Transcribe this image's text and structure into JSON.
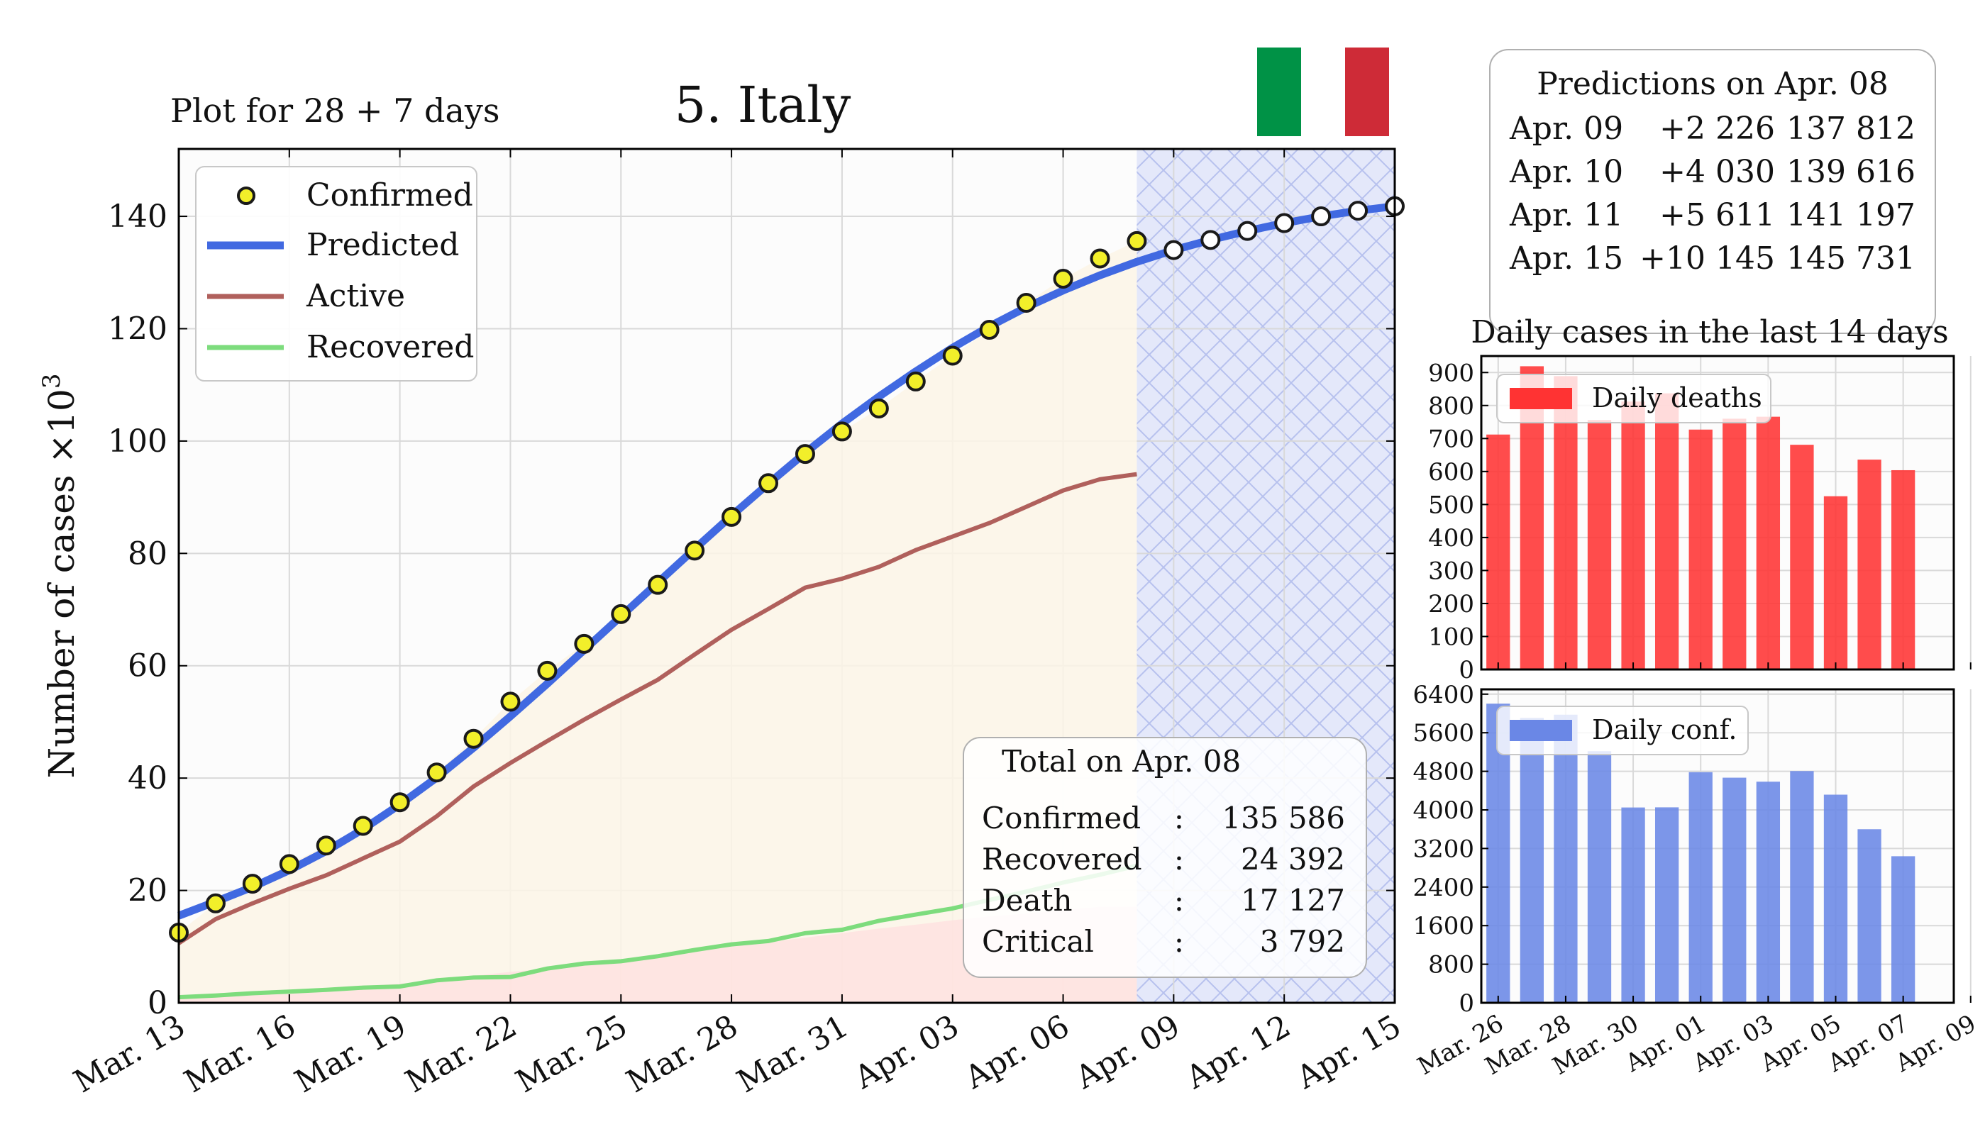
{
  "header": {
    "subtitle": "Plot for 28 + 7 days",
    "title": "5. Italy",
    "flag_colors": [
      "#009246",
      "#ffffff",
      "#ce2b37"
    ]
  },
  "main": {
    "ylabel": "Number of cases ×10",
    "ylabel_sup": "3",
    "x_ticks": [
      "Mar. 13",
      "Mar. 16",
      "Mar. 19",
      "Mar. 22",
      "Mar. 25",
      "Mar. 28",
      "Mar. 31",
      "Apr. 03",
      "Apr. 06",
      "Apr. 09",
      "Apr. 12",
      "Apr. 15"
    ],
    "y_ticks": [
      "0",
      "20",
      "40",
      "60",
      "80",
      "100",
      "120",
      "140"
    ],
    "legend": [
      "Confirmed",
      "Predicted",
      "Active",
      "Recovered"
    ],
    "summary": {
      "title": "Total on Apr. 08",
      "rows": [
        {
          "label": "Confirmed",
          "sep": ":",
          "value": "135 586"
        },
        {
          "label": "Recovered",
          "sep": ":",
          "value": "24 392"
        },
        {
          "label": "Death",
          "sep": ":",
          "value": "17 127"
        },
        {
          "label": "Critical",
          "sep": ":",
          "value": "3 792"
        }
      ]
    }
  },
  "predictions": {
    "title": "Predictions on Apr. 08",
    "rows": [
      {
        "date": "Apr. 09",
        "delta": "+2 226",
        "total": "137 812"
      },
      {
        "date": "Apr. 10",
        "delta": "+4 030",
        "total": "139 616"
      },
      {
        "date": "Apr. 11",
        "delta": "+5 611",
        "total": "141 197"
      },
      {
        "date": "Apr. 15",
        "delta": "+10 145",
        "total": "145 731"
      }
    ]
  },
  "daily": {
    "title": "Daily cases in the last 14 days",
    "x_ticks": [
      "Mar. 26",
      "Mar. 28",
      "Mar. 30",
      "Apr. 01",
      "Apr. 03",
      "Apr. 05",
      "Apr. 07",
      "Apr. 09"
    ],
    "deaths_legend": "Daily deaths",
    "conf_legend": "Daily conf.",
    "deaths_ticks": [
      "0",
      "100",
      "200",
      "300",
      "400",
      "500",
      "600",
      "700",
      "800",
      "900"
    ],
    "conf_ticks": [
      "0",
      "800",
      "1600",
      "2400",
      "3200",
      "4000",
      "4800",
      "5600",
      "6400"
    ]
  },
  "colors": {
    "confirmed": "#f2ef2a",
    "predicted": "#4169e1",
    "active": "#b0605c",
    "recovered": "#7ddc7d",
    "deaths_bar": "#ff3333",
    "conf_bar": "#6a87e6"
  },
  "chart_data": [
    {
      "type": "line",
      "x": [
        "Mar. 13",
        "Mar. 14",
        "Mar. 15",
        "Mar. 16",
        "Mar. 17",
        "Mar. 18",
        "Mar. 19",
        "Mar. 20",
        "Mar. 21",
        "Mar. 22",
        "Mar. 23",
        "Mar. 24",
        "Mar. 25",
        "Mar. 26",
        "Mar. 27",
        "Mar. 28",
        "Mar. 29",
        "Mar. 30",
        "Mar. 31",
        "Apr. 01",
        "Apr. 02",
        "Apr. 03",
        "Apr. 04",
        "Apr. 05",
        "Apr. 06",
        "Apr. 07",
        "Apr. 08",
        "Apr. 09",
        "Apr. 10",
        "Apr. 11",
        "Apr. 12",
        "Apr. 13",
        "Apr. 14",
        "Apr. 15"
      ],
      "series": [
        {
          "name": "Confirmed",
          "values": [
            12.5,
            17.7,
            21.2,
            24.7,
            28.0,
            31.5,
            35.7,
            41.0,
            47.0,
            53.6,
            59.1,
            63.9,
            69.2,
            74.4,
            80.5,
            86.5,
            92.5,
            97.7,
            101.7,
            105.8,
            110.6,
            115.2,
            119.8,
            124.6,
            128.9,
            132.5,
            135.6,
            null,
            null,
            null,
            null,
            null,
            null,
            null
          ]
        },
        {
          "name": "Predicted",
          "values": [
            15.5,
            18.0,
            20.6,
            23.6,
            27.0,
            30.9,
            35.3,
            40.1,
            45.4,
            51.0,
            56.8,
            62.8,
            68.8,
            74.8,
            80.8,
            86.7,
            92.4,
            97.9,
            103.1,
            107.9,
            112.4,
            116.6,
            120.4,
            123.8,
            126.8,
            129.5,
            131.9,
            134.0,
            135.8,
            137.4,
            138.8,
            140.0,
            141.0,
            141.8
          ]
        },
        {
          "name": "Active",
          "values": [
            10.6,
            14.9,
            17.7,
            20.3,
            22.7,
            25.7,
            28.7,
            33.2,
            38.5,
            42.7,
            46.6,
            50.4,
            54.0,
            57.5,
            62.0,
            66.4,
            70.1,
            73.9,
            75.5,
            77.6,
            80.6,
            83.0,
            85.4,
            88.3,
            91.2,
            93.2,
            94.1,
            null,
            null,
            null,
            null,
            null,
            null,
            null
          ]
        },
        {
          "name": "Recovered",
          "values": [
            1.0,
            1.3,
            1.7,
            2.0,
            2.3,
            2.7,
            2.9,
            4.0,
            4.5,
            4.6,
            6.1,
            7.0,
            7.4,
            8.3,
            9.4,
            10.4,
            11.0,
            12.4,
            13.0,
            14.6,
            15.7,
            16.8,
            18.3,
            19.8,
            21.4,
            22.8,
            24.4,
            null,
            null,
            null,
            null,
            null,
            null,
            null
          ]
        },
        {
          "name": "Death",
          "values": [
            1.3,
            1.4,
            1.8,
            2.2,
            2.5,
            3.0,
            3.4,
            4.0,
            4.8,
            5.5,
            6.1,
            6.8,
            7.5,
            8.2,
            9.1,
            10.0,
            10.8,
            11.6,
            12.4,
            13.2,
            13.9,
            14.7,
            15.4,
            15.9,
            16.5,
            17.1,
            17.1,
            null,
            null,
            null,
            null,
            null,
            null,
            null
          ]
        }
      ],
      "ylim": [
        0,
        152
      ],
      "xlabel": "",
      "ylabel": "Number of cases ×10^3"
    },
    {
      "type": "bar",
      "title": "Daily cases in the last 14 days",
      "categories": [
        "Mar. 26",
        "Mar. 27",
        "Mar. 28",
        "Mar. 29",
        "Mar. 30",
        "Mar. 31",
        "Apr. 01",
        "Apr. 02",
        "Apr. 03",
        "Apr. 04",
        "Apr. 05",
        "Apr. 06",
        "Apr. 07"
      ],
      "series": [
        {
          "name": "Daily deaths",
          "values": [
            712,
            919,
            889,
            756,
            812,
            837,
            727,
            760,
            766,
            681,
            525,
            636,
            604
          ]
        }
      ],
      "ylim": [
        0,
        950
      ]
    },
    {
      "type": "bar",
      "categories": [
        "Mar. 26",
        "Mar. 27",
        "Mar. 28",
        "Mar. 29",
        "Mar. 30",
        "Mar. 31",
        "Apr. 01",
        "Apr. 02",
        "Apr. 03",
        "Apr. 04",
        "Apr. 05",
        "Apr. 06",
        "Apr. 07"
      ],
      "series": [
        {
          "name": "Daily conf.",
          "values": [
            6203,
            5909,
            5974,
            5217,
            4050,
            4053,
            4782,
            4668,
            4585,
            4805,
            4316,
            3599,
            3039
          ]
        }
      ],
      "ylim": [
        0,
        6500
      ]
    }
  ]
}
